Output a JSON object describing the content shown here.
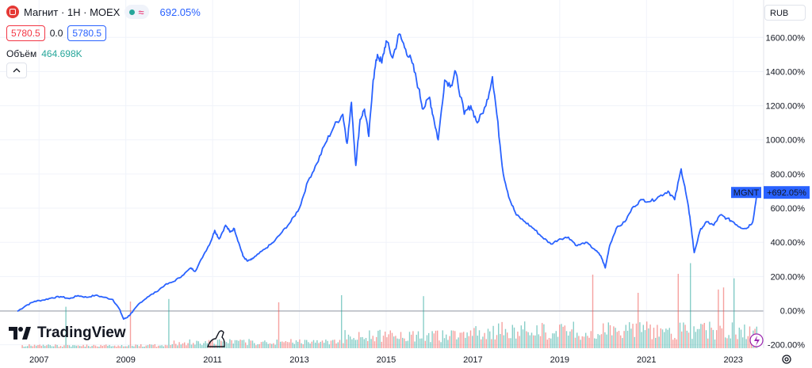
{
  "header": {
    "symbol_title": "Магнит · 1H · MOEX",
    "change": "692.05%",
    "bid": "5780.5",
    "spread": "0.0",
    "ask": "5780.5"
  },
  "volume": {
    "label": "Объём",
    "value": "464.698K"
  },
  "currency": "RUB",
  "brand": "TradingView",
  "chart_data": {
    "type": "line",
    "series": [
      {
        "name": "MGNT",
        "line_color": "#2962ff",
        "points": [
          [
            2006.5,
            -4
          ],
          [
            2006.7,
            30
          ],
          [
            2006.9,
            55
          ],
          [
            2007.1,
            62
          ],
          [
            2007.3,
            75
          ],
          [
            2007.5,
            82
          ],
          [
            2007.7,
            70
          ],
          [
            2007.9,
            88
          ],
          [
            2008.1,
            78
          ],
          [
            2008.3,
            90
          ],
          [
            2008.5,
            78
          ],
          [
            2008.7,
            65
          ],
          [
            2008.85,
            10
          ],
          [
            2008.95,
            -50
          ],
          [
            2009.05,
            -35
          ],
          [
            2009.15,
            -10
          ],
          [
            2009.3,
            40
          ],
          [
            2009.5,
            80
          ],
          [
            2009.7,
            110
          ],
          [
            2009.9,
            150
          ],
          [
            2010.1,
            170
          ],
          [
            2010.3,
            205
          ],
          [
            2010.5,
            250
          ],
          [
            2010.6,
            230
          ],
          [
            2010.8,
            330
          ],
          [
            2010.95,
            400
          ],
          [
            2011.05,
            470
          ],
          [
            2011.15,
            420
          ],
          [
            2011.3,
            500
          ],
          [
            2011.4,
            460
          ],
          [
            2011.5,
            480
          ],
          [
            2011.6,
            400
          ],
          [
            2011.7,
            320
          ],
          [
            2011.8,
            290
          ],
          [
            2011.9,
            300
          ],
          [
            2012.0,
            320
          ],
          [
            2012.2,
            360
          ],
          [
            2012.4,
            400
          ],
          [
            2012.6,
            460
          ],
          [
            2012.8,
            520
          ],
          [
            2013.0,
            600
          ],
          [
            2013.2,
            760
          ],
          [
            2013.4,
            860
          ],
          [
            2013.6,
            980
          ],
          [
            2013.8,
            1080
          ],
          [
            2014.0,
            1150
          ],
          [
            2014.1,
            980
          ],
          [
            2014.2,
            1220
          ],
          [
            2014.3,
            850
          ],
          [
            2014.4,
            1120
          ],
          [
            2014.5,
            1180
          ],
          [
            2014.6,
            1020
          ],
          [
            2014.7,
            1350
          ],
          [
            2014.8,
            1500
          ],
          [
            2014.9,
            1450
          ],
          [
            2015.0,
            1580
          ],
          [
            2015.15,
            1480
          ],
          [
            2015.3,
            1620
          ],
          [
            2015.45,
            1530
          ],
          [
            2015.6,
            1450
          ],
          [
            2015.75,
            1300
          ],
          [
            2015.85,
            1180
          ],
          [
            2016.0,
            1250
          ],
          [
            2016.1,
            1120
          ],
          [
            2016.2,
            1000
          ],
          [
            2016.35,
            1350
          ],
          [
            2016.5,
            1320
          ],
          [
            2016.6,
            1400
          ],
          [
            2016.8,
            1150
          ],
          [
            2016.95,
            1200
          ],
          [
            2017.1,
            1100
          ],
          [
            2017.3,
            1200
          ],
          [
            2017.45,
            1370
          ],
          [
            2017.55,
            1150
          ],
          [
            2017.7,
            800
          ],
          [
            2017.85,
            650
          ],
          [
            2018.0,
            560
          ],
          [
            2018.2,
            520
          ],
          [
            2018.4,
            480
          ],
          [
            2018.6,
            430
          ],
          [
            2018.8,
            390
          ],
          [
            2019.0,
            420
          ],
          [
            2019.2,
            430
          ],
          [
            2019.4,
            380
          ],
          [
            2019.6,
            400
          ],
          [
            2019.8,
            360
          ],
          [
            2019.95,
            320
          ],
          [
            2020.05,
            250
          ],
          [
            2020.15,
            380
          ],
          [
            2020.3,
            480
          ],
          [
            2020.5,
            520
          ],
          [
            2020.7,
            610
          ],
          [
            2020.9,
            650
          ],
          [
            2021.1,
            640
          ],
          [
            2021.3,
            670
          ],
          [
            2021.5,
            700
          ],
          [
            2021.65,
            650
          ],
          [
            2021.8,
            830
          ],
          [
            2021.9,
            700
          ],
          [
            2022.0,
            550
          ],
          [
            2022.1,
            340
          ],
          [
            2022.25,
            480
          ],
          [
            2022.4,
            520
          ],
          [
            2022.55,
            500
          ],
          [
            2022.7,
            560
          ],
          [
            2022.85,
            540
          ],
          [
            2023.0,
            520
          ],
          [
            2023.15,
            490
          ],
          [
            2023.3,
            480
          ],
          [
            2023.45,
            520
          ],
          [
            2023.55,
            692
          ]
        ]
      }
    ],
    "last_value_label": "+692.05%",
    "last_value": 692.05,
    "last_value_tag": "MGNT",
    "x_tick_labels": [
      "2007",
      "2009",
      "2011",
      "2013",
      "2015",
      "2017",
      "2019",
      "2021",
      "2023"
    ],
    "x_ticks": [
      2007,
      2009,
      2011,
      2013,
      2015,
      2017,
      2019,
      2021,
      2023
    ],
    "y_tick_labels": [
      "1600.00%",
      "1400.00%",
      "1200.00%",
      "1000.00%",
      "800.00%",
      "600.00%",
      "400.00%",
      "200.00%",
      "0.00%",
      "-200.00%"
    ],
    "y_ticks": [
      1600,
      1400,
      1200,
      1000,
      800,
      600,
      400,
      200,
      0,
      -200
    ],
    "xlim": [
      2006.1,
      2023.7
    ],
    "ylim": [
      -220,
      1680
    ],
    "grid": true,
    "volume_colors": {
      "up": "#26a69a",
      "down": "#ef5350"
    }
  }
}
